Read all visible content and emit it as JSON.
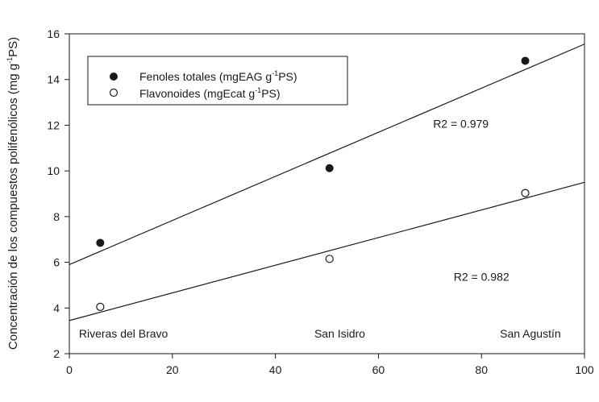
{
  "chart_data": {
    "type": "scatter",
    "xlim": [
      0,
      100
    ],
    "ylim": [
      2,
      16
    ],
    "xticks": [
      0,
      20,
      40,
      60,
      80,
      100
    ],
    "yticks": [
      2,
      4,
      6,
      8,
      10,
      12,
      14,
      16
    ],
    "ylabel": {
      "main": "Concentración de los compuestos polifenólicos (mg g",
      "sup": "-1",
      "tail": "PS)"
    },
    "grid": false,
    "legend_position": "top-left",
    "series": [
      {
        "legend": {
          "main": "Fenoles totales (mgEAG g",
          "sup": "-1",
          "tail": "PS)"
        },
        "marker": "filled-circle",
        "x": [
          6.0,
          50.5,
          88.5
        ],
        "y": [
          6.85,
          10.12,
          14.82
        ],
        "fit": {
          "x": [
            0,
            100
          ],
          "y": [
            5.9,
            15.55
          ]
        },
        "r2_label": "R2 = 0.979",
        "r2_at": {
          "x": 76,
          "y": 11.9
        }
      },
      {
        "legend": {
          "main": "Flavonoides (mgEcat g",
          "sup": "-1",
          "tail": "PS)"
        },
        "marker": "open-circle",
        "x": [
          6.0,
          50.5,
          88.5
        ],
        "y": [
          4.05,
          6.15,
          9.03
        ],
        "fit": {
          "x": [
            0,
            100
          ],
          "y": [
            3.45,
            9.5
          ]
        },
        "r2_label": "R2 = 0.982",
        "r2_at": {
          "x": 80,
          "y": 5.2
        }
      }
    ],
    "annotations": [
      {
        "text": "Riveras del Bravo",
        "x": 10.5,
        "y": 2.7
      },
      {
        "text": "San Isidro",
        "x": 52.5,
        "y": 2.7
      },
      {
        "text": "San Agustín",
        "x": 89.5,
        "y": 2.7
      }
    ]
  }
}
